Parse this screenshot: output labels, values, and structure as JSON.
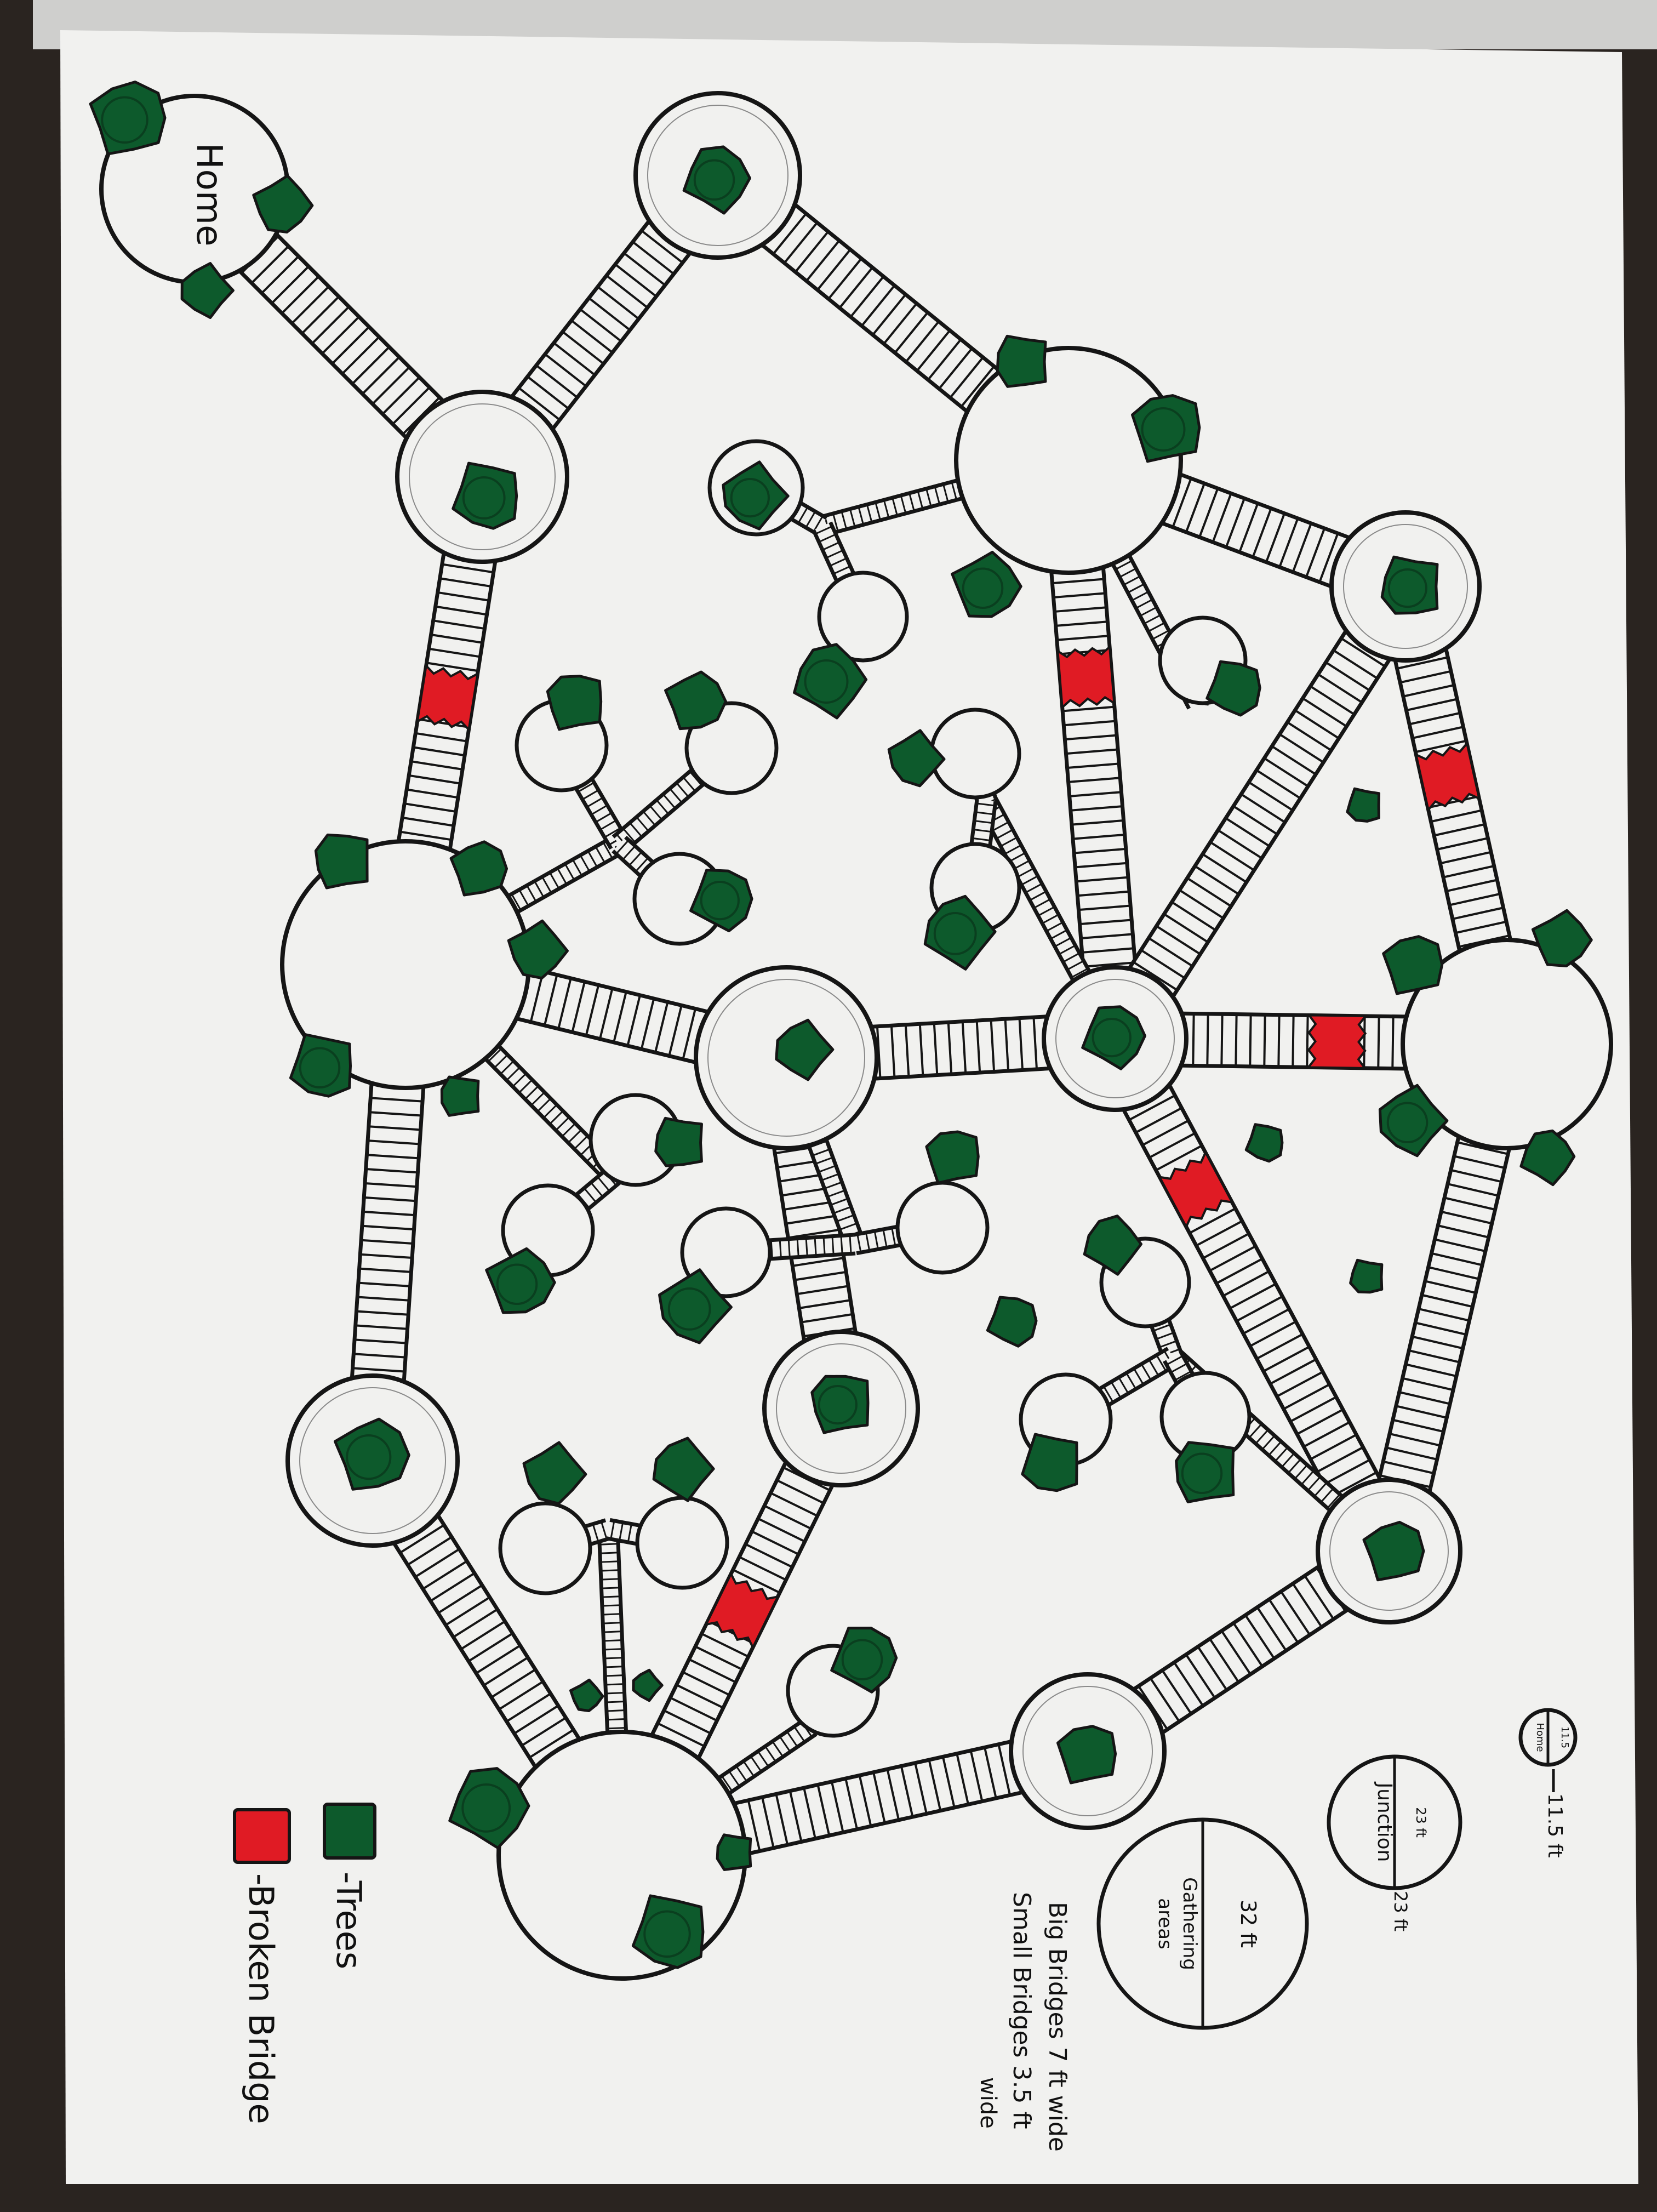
{
  "labels": {
    "home": "Home"
  },
  "legend": {
    "trees": "-Trees",
    "broken_bridge": "-Broken Bridge"
  },
  "scale_key": {
    "home_circle_value": "11.5",
    "home_circle_label": "Home",
    "home_dimension": "11.5 ft",
    "junction_value": "23 ft",
    "junction_label": "Junction",
    "junction_dimension": "23 ft",
    "gathering_value": "32 ft",
    "gathering_label": "Gathering",
    "gathering_label_2": "areas",
    "bridge_note_1": "Big Bridges 7 ft wide",
    "bridge_note_2": "Small Bridges 3.5 ft",
    "bridge_note_3": "wide"
  },
  "colors": {
    "tree": "#0d5a2c",
    "broken_bridge": "#e01b24",
    "ink": "#151515",
    "paper": "#f1f1ef"
  }
}
